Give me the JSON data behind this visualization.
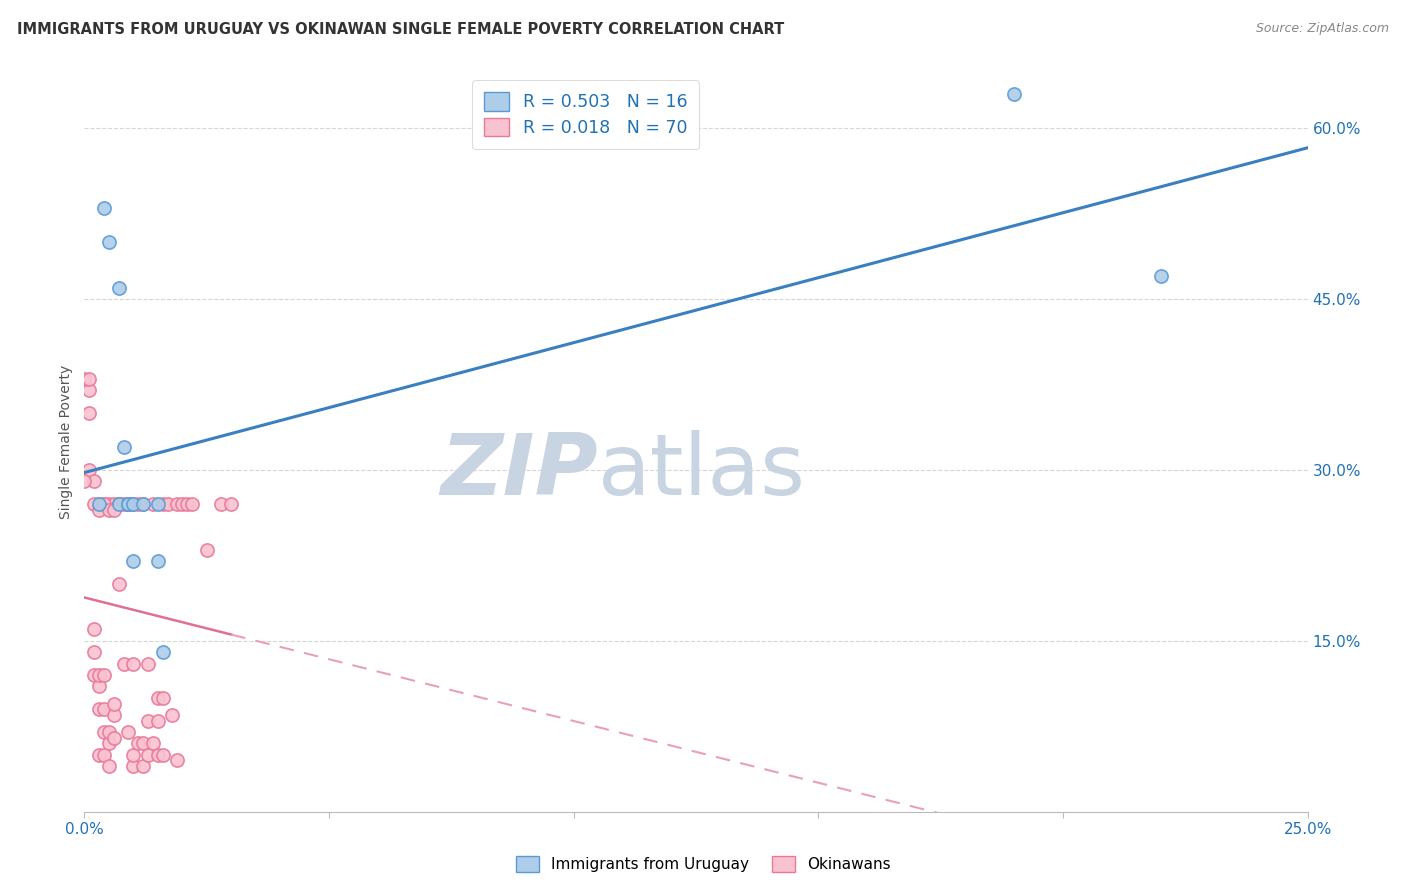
{
  "title": "IMMIGRANTS FROM URUGUAY VS OKINAWAN SINGLE FEMALE POVERTY CORRELATION CHART",
  "source": "Source: ZipAtlas.com",
  "ylabel": "Single Female Poverty",
  "legend_label_blue": "Immigrants from Uruguay",
  "legend_label_pink": "Okinawans",
  "R_blue": 0.503,
  "N_blue": 16,
  "R_pink": 0.018,
  "N_pink": 70,
  "blue_fill_color": "#aecde8",
  "pink_fill_color": "#f9c2d0",
  "blue_edge_color": "#5b9bd5",
  "pink_edge_color": "#e8799a",
  "blue_line_color": "#3a7fc1",
  "pink_line_color": "#e07090",
  "pink_dash_color": "#e8a0b8",
  "watermark_zip": "ZIP",
  "watermark_atlas": "atlas",
  "watermark_color_zip": "#d0dce8",
  "watermark_color_atlas": "#c0ccd8",
  "blue_scatter_x": [
    0.003,
    0.004,
    0.005,
    0.007,
    0.007,
    0.008,
    0.009,
    0.009,
    0.01,
    0.01,
    0.012,
    0.015,
    0.015,
    0.016,
    0.19,
    0.22
  ],
  "blue_scatter_y": [
    0.27,
    0.53,
    0.5,
    0.46,
    0.27,
    0.32,
    0.27,
    0.27,
    0.22,
    0.27,
    0.27,
    0.27,
    0.22,
    0.14,
    0.63,
    0.47
  ],
  "pink_scatter_x": [
    0.001,
    0.001,
    0.001,
    0.002,
    0.002,
    0.002,
    0.002,
    0.003,
    0.003,
    0.003,
    0.003,
    0.003,
    0.004,
    0.004,
    0.004,
    0.004,
    0.004,
    0.005,
    0.005,
    0.005,
    0.005,
    0.006,
    0.006,
    0.006,
    0.006,
    0.007,
    0.007,
    0.008,
    0.008,
    0.009,
    0.009,
    0.01,
    0.01,
    0.01,
    0.01,
    0.011,
    0.011,
    0.012,
    0.012,
    0.012,
    0.013,
    0.013,
    0.013,
    0.014,
    0.014,
    0.015,
    0.015,
    0.015,
    0.016,
    0.016,
    0.016,
    0.017,
    0.018,
    0.019,
    0.019,
    0.02,
    0.021,
    0.022,
    0.025,
    0.028,
    0.03,
    0.0,
    0.0,
    0.001,
    0.002,
    0.003,
    0.004,
    0.005,
    0.006,
    0.007
  ],
  "pink_scatter_y": [
    0.37,
    0.3,
    0.35,
    0.12,
    0.14,
    0.16,
    0.29,
    0.05,
    0.09,
    0.11,
    0.12,
    0.27,
    0.05,
    0.07,
    0.09,
    0.12,
    0.27,
    0.04,
    0.06,
    0.07,
    0.27,
    0.065,
    0.085,
    0.095,
    0.27,
    0.27,
    0.27,
    0.13,
    0.27,
    0.07,
    0.27,
    0.04,
    0.05,
    0.13,
    0.27,
    0.06,
    0.27,
    0.04,
    0.06,
    0.27,
    0.05,
    0.08,
    0.13,
    0.06,
    0.27,
    0.05,
    0.08,
    0.1,
    0.05,
    0.1,
    0.27,
    0.27,
    0.085,
    0.045,
    0.27,
    0.27,
    0.27,
    0.27,
    0.23,
    0.27,
    0.27,
    0.38,
    0.29,
    0.38,
    0.27,
    0.265,
    0.27,
    0.265,
    0.265,
    0.2
  ],
  "xlim": [
    0.0,
    0.25
  ],
  "ylim": [
    0.0,
    0.65
  ],
  "yticks": [
    0.15,
    0.3,
    0.45,
    0.6
  ],
  "ytick_labels": [
    "15.0%",
    "30.0%",
    "45.0%",
    "60.0%"
  ],
  "xticks": [
    0.0,
    0.05,
    0.1,
    0.15,
    0.2,
    0.25
  ],
  "xtick_labels": [
    "0.0%",
    "",
    "",
    "",
    "",
    "25.0%"
  ],
  "figsize": [
    14.06,
    8.92
  ],
  "dpi": 100
}
